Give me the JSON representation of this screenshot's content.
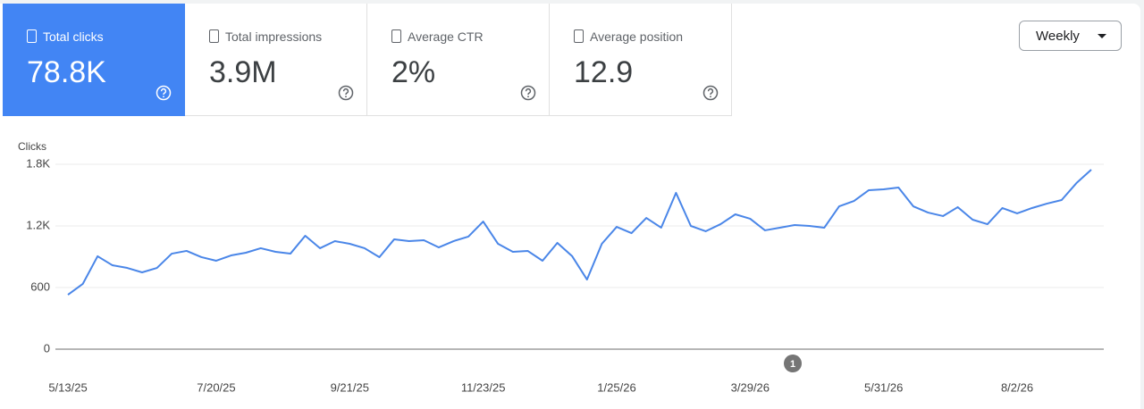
{
  "metrics": [
    {
      "label": "Total clicks",
      "value": "78.8K",
      "selected": true
    },
    {
      "label": "Total impressions",
      "value": "3.9M",
      "selected": false
    },
    {
      "label": "Average CTR",
      "value": "2%",
      "selected": false
    },
    {
      "label": "Average position",
      "value": "12.9",
      "selected": false
    }
  ],
  "period_select": {
    "label": "Weekly"
  },
  "chart_data": {
    "type": "line",
    "y_label": "Clicks",
    "color": "#4a86e8",
    "grid": true,
    "categories": [
      "5/13/25",
      null,
      null,
      null,
      null,
      null,
      null,
      null,
      null,
      null,
      "7/20/25",
      null,
      null,
      null,
      null,
      null,
      null,
      null,
      null,
      "9/21/25",
      null,
      null,
      null,
      null,
      null,
      null,
      null,
      null,
      "11/23/25",
      null,
      null,
      null,
      null,
      null,
      null,
      null,
      null,
      "1/25/26",
      null,
      null,
      null,
      null,
      null,
      null,
      null,
      null,
      "3/29/26",
      null,
      null,
      null,
      null,
      null,
      null,
      null,
      null,
      "5/31/26",
      null,
      null,
      null,
      null,
      null,
      null,
      null,
      null,
      "8/2/26",
      null,
      null,
      null,
      null,
      null
    ],
    "values": [
      530,
      635,
      905,
      817,
      791,
      748,
      791,
      930,
      957,
      896,
      861,
      913,
      939,
      983,
      948,
      930,
      1104,
      983,
      1052,
      1026,
      983,
      896,
      1070,
      1052,
      1061,
      991,
      1052,
      1096,
      1243,
      1026,
      948,
      957,
      861,
      1035,
      905,
      678,
      1026,
      1191,
      1130,
      1278,
      1183,
      1522,
      1200,
      1148,
      1217,
      1313,
      1270,
      1157,
      1183,
      1209,
      1200,
      1183,
      1391,
      1443,
      1548,
      1557,
      1574,
      1391,
      1330,
      1296,
      1383,
      1261,
      1217,
      1374,
      1322,
      1374,
      1417,
      1452,
      1617,
      1748
    ],
    "ylim": [
      0,
      1800
    ],
    "yticks": [
      0,
      600,
      {
        "value": 1200,
        "label": "1.2K"
      },
      {
        "value": 1800,
        "label": "1.8K"
      }
    ],
    "annotations": [
      {
        "label": "1"
      }
    ]
  }
}
